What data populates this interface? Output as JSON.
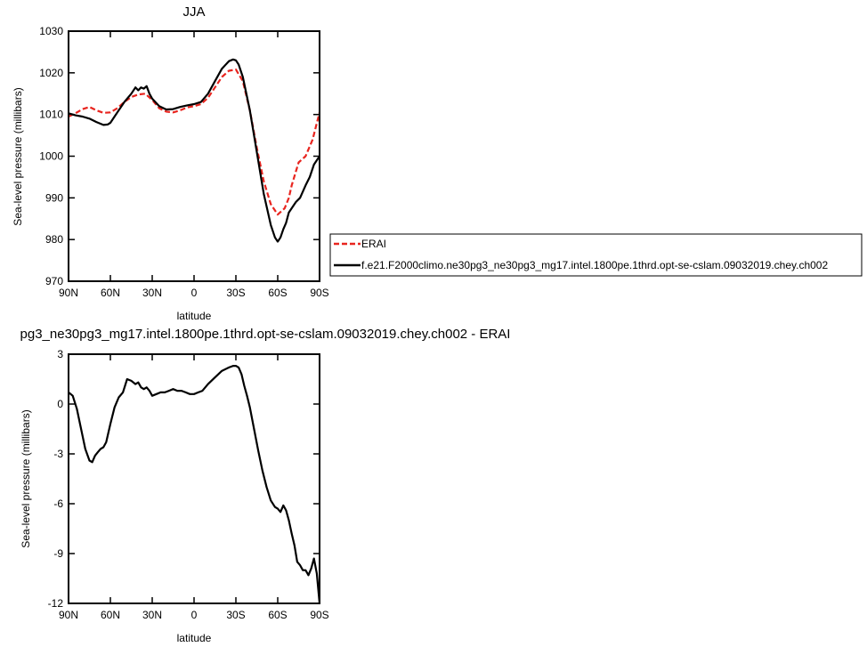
{
  "chart_data": [
    {
      "type": "line",
      "title": "JJA",
      "xlabel": "latitude",
      "ylabel": "Sea-level pressure (millibars)",
      "xlim": [
        90,
        -90
      ],
      "ylim": [
        970,
        1030
      ],
      "xtick_values": [
        90,
        60,
        30,
        0,
        -30,
        -60,
        -90
      ],
      "xtick_labels": [
        "90N",
        "60N",
        "30N",
        "0",
        "30S",
        "60S",
        "90S"
      ],
      "ytick_values": [
        970,
        980,
        990,
        1000,
        1010,
        1020,
        1030
      ],
      "ytick_labels": [
        "970",
        "980",
        "990",
        "1000",
        "1010",
        "1020",
        "1030"
      ],
      "grid": false,
      "legend": "right",
      "series": [
        {
          "name": "ERAI",
          "color": "#e8251f",
          "dash": "dashed",
          "x": [
            90,
            85,
            80,
            75,
            70,
            65,
            60,
            55,
            50,
            45,
            40,
            35,
            30,
            25,
            20,
            15,
            10,
            5,
            0,
            -5,
            -10,
            -15,
            -20,
            -25,
            -30,
            -35,
            -40,
            -45,
            -50,
            -55,
            -60,
            -65,
            -68,
            -70,
            -75,
            -80,
            -85,
            -90
          ],
          "y": [
            1009.5,
            1010.3,
            1011.3,
            1011.8,
            1011.0,
            1010.4,
            1010.5,
            1011.5,
            1013.0,
            1014.2,
            1014.8,
            1015.0,
            1013.5,
            1011.5,
            1010.7,
            1010.5,
            1011.0,
            1011.7,
            1012.0,
            1012.5,
            1014.0,
            1016.5,
            1019.0,
            1020.5,
            1020.8,
            1018.0,
            1011.0,
            1002.0,
            994.0,
            988.5,
            986.0,
            987.5,
            990.0,
            993.0,
            998.5,
            1000.0,
            1004.0,
            1010.5
          ]
        },
        {
          "name": "f.e21.F2000climo.ne30pg3_ne30pg3_mg17.intel.1800pe.1thrd.opt-se-cslam.09032019.chey.ch002",
          "color": "#000000",
          "dash": "solid",
          "x": [
            90,
            85,
            80,
            75,
            70,
            65,
            62,
            60,
            55,
            50,
            45,
            42,
            40,
            38,
            36,
            34,
            32,
            30,
            25,
            20,
            15,
            10,
            5,
            0,
            -5,
            -10,
            -15,
            -20,
            -25,
            -28,
            -30,
            -32,
            -35,
            -40,
            -45,
            -50,
            -55,
            -58,
            -60,
            -62,
            -64,
            -66,
            -68,
            -70,
            -73,
            -76,
            -80,
            -83,
            -86,
            -90
          ],
          "y": [
            1010.3,
            1009.8,
            1009.5,
            1009.0,
            1008.2,
            1007.5,
            1007.6,
            1008.0,
            1010.5,
            1013.0,
            1015.0,
            1016.5,
            1015.8,
            1016.5,
            1016.2,
            1016.8,
            1015.0,
            1013.8,
            1012.0,
            1011.2,
            1011.3,
            1011.8,
            1012.2,
            1012.5,
            1013.0,
            1015.0,
            1018.0,
            1021.0,
            1022.8,
            1023.2,
            1023.0,
            1022.0,
            1019.0,
            1011.0,
            1001.0,
            991.0,
            983.5,
            980.5,
            979.5,
            980.5,
            982.5,
            984.0,
            986.5,
            987.5,
            989.0,
            990.0,
            993.0,
            995.0,
            998.0,
            1000.0
          ]
        }
      ]
    },
    {
      "type": "line",
      "title": "pg3_ne30pg3_mg17.intel.1800pe.1thrd.opt-se-cslam.09032019.chey.ch002 - ERAI",
      "xlabel": "latitude",
      "ylabel": "Sea-level pressure (millibars)",
      "xlim": [
        90,
        -90
      ],
      "ylim": [
        -12,
        3
      ],
      "xtick_values": [
        90,
        60,
        30,
        0,
        -30,
        -60,
        -90
      ],
      "xtick_labels": [
        "90N",
        "60N",
        "30N",
        "0",
        "30S",
        "60S",
        "90S"
      ],
      "ytick_values": [
        -12,
        -9,
        -6,
        -3,
        0,
        3
      ],
      "ytick_labels": [
        "-12",
        "-9",
        "-6",
        "-3",
        "0",
        "3"
      ],
      "grid": false,
      "series": [
        {
          "color": "#000000",
          "dash": "solid",
          "x": [
            90,
            87,
            84,
            81,
            78,
            75,
            73,
            71,
            69,
            67,
            65,
            63,
            60,
            57,
            54,
            51,
            48,
            45,
            42,
            40,
            38,
            36,
            34,
            32,
            30,
            27,
            24,
            21,
            18,
            15,
            12,
            9,
            6,
            3,
            0,
            -3,
            -6,
            -10,
            -15,
            -20,
            -25,
            -28,
            -30,
            -32,
            -34,
            -36,
            -38,
            -40,
            -43,
            -46,
            -49,
            -52,
            -55,
            -58,
            -60,
            -62,
            -64,
            -66,
            -68,
            -70,
            -72,
            -74,
            -76,
            -78,
            -80,
            -82,
            -84,
            -86,
            -88,
            -90
          ],
          "y": [
            0.7,
            0.5,
            -0.3,
            -1.5,
            -2.7,
            -3.4,
            -3.5,
            -3.1,
            -2.9,
            -2.7,
            -2.6,
            -2.3,
            -1.2,
            -0.2,
            0.4,
            0.7,
            1.5,
            1.4,
            1.2,
            1.3,
            1.0,
            0.9,
            1.0,
            0.8,
            0.5,
            0.6,
            0.7,
            0.7,
            0.8,
            0.9,
            0.8,
            0.8,
            0.7,
            0.6,
            0.6,
            0.7,
            0.8,
            1.2,
            1.6,
            2.0,
            2.2,
            2.3,
            2.3,
            2.2,
            1.8,
            1.1,
            0.5,
            -0.2,
            -1.5,
            -2.8,
            -4.0,
            -5.0,
            -5.8,
            -6.2,
            -6.3,
            -6.5,
            -6.1,
            -6.4,
            -7.0,
            -7.8,
            -8.5,
            -9.5,
            -9.7,
            -10.0,
            -10.0,
            -10.3,
            -9.9,
            -9.3,
            -10.2,
            -12.0
          ]
        }
      ]
    }
  ]
}
